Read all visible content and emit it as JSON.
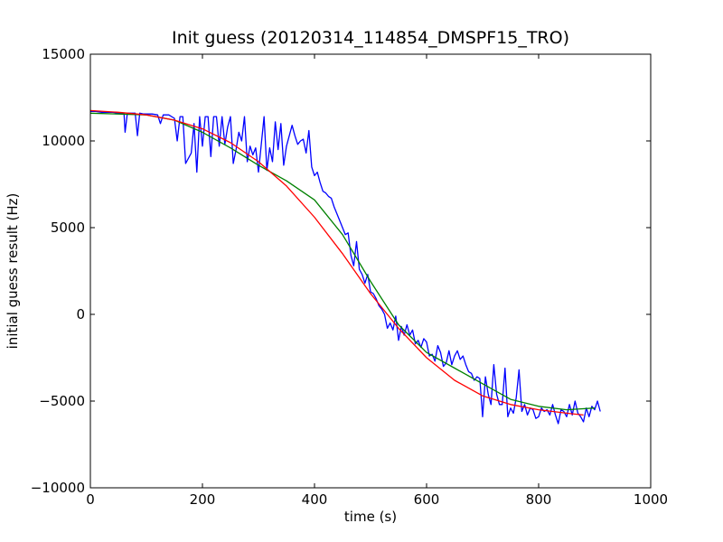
{
  "chart_data": {
    "type": "line",
    "title": "Init guess (20120314_114854_DMSPF15_TRO)",
    "xlabel": "time (s)",
    "ylabel": "initial guess result (Hz)",
    "xlim": [
      0,
      1000
    ],
    "ylim": [
      -10000,
      15000
    ],
    "x_ticks": [
      0,
      200,
      400,
      600,
      800,
      1000
    ],
    "y_ticks": [
      -10000,
      -5000,
      0,
      5000,
      10000,
      15000
    ],
    "x_tick_labels": [
      "0",
      "200",
      "400",
      "600",
      "800",
      "1000"
    ],
    "y_tick_labels": [
      "−10000",
      "−5000",
      "0",
      "5000",
      "10000",
      "15000"
    ],
    "grid": false,
    "series": [
      {
        "color": "#0000ff",
        "x": [
          0,
          10,
          20,
          30,
          40,
          50,
          60,
          62,
          66,
          70,
          80,
          84,
          88,
          95,
          100,
          110,
          120,
          125,
          130,
          140,
          150,
          155,
          160,
          165,
          170,
          180,
          185,
          190,
          195,
          200,
          205,
          210,
          215,
          220,
          225,
          230,
          235,
          240,
          245,
          250,
          255,
          260,
          265,
          270,
          275,
          280,
          285,
          290,
          295,
          300,
          305,
          310,
          315,
          320,
          325,
          330,
          335,
          340,
          345,
          350,
          355,
          360,
          365,
          370,
          375,
          380,
          385,
          390,
          395,
          400,
          405,
          410,
          415,
          420,
          425,
          430,
          435,
          440,
          445,
          450,
          455,
          460,
          465,
          470,
          475,
          480,
          485,
          490,
          495,
          500,
          505,
          510,
          515,
          520,
          525,
          530,
          535,
          540,
          545,
          550,
          555,
          560,
          565,
          570,
          575,
          580,
          585,
          590,
          595,
          600,
          605,
          610,
          615,
          620,
          625,
          630,
          635,
          640,
          645,
          650,
          655,
          660,
          665,
          670,
          675,
          680,
          685,
          690,
          695,
          700,
          705,
          710,
          715,
          720,
          725,
          730,
          735,
          740,
          745,
          750,
          755,
          760,
          765,
          770,
          775,
          780,
          785,
          790,
          795,
          800,
          805,
          810,
          815,
          820,
          825,
          830,
          835,
          840,
          845,
          850,
          855,
          860,
          865,
          870,
          875,
          880,
          885,
          890,
          895,
          900,
          905,
          910
        ],
        "y": [
          11700,
          11700,
          11650,
          11650,
          11650,
          11600,
          11600,
          10500,
          11600,
          11600,
          11600,
          10300,
          11600,
          11550,
          11550,
          11550,
          11500,
          11000,
          11500,
          11500,
          11300,
          10000,
          11400,
          11400,
          8700,
          9300,
          11000,
          8200,
          11400,
          9700,
          11400,
          11400,
          9100,
          11400,
          11400,
          9700,
          11400,
          9800,
          10800,
          11400,
          8700,
          9500,
          10500,
          10000,
          11400,
          8800,
          9700,
          9200,
          9600,
          8200,
          9800,
          11400,
          8300,
          9600,
          8800,
          11100,
          9500,
          11000,
          8600,
          9700,
          10300,
          10900,
          10300,
          9800,
          10000,
          10100,
          9300,
          10600,
          8500,
          8000,
          8200,
          7600,
          7100,
          7000,
          6800,
          6700,
          6200,
          5800,
          5400,
          5000,
          4600,
          4700,
          3400,
          2800,
          4200,
          2600,
          2300,
          1800,
          2300,
          1300,
          1200,
          900,
          500,
          300,
          0,
          -800,
          -500,
          -900,
          -100,
          -1500,
          -700,
          -1200,
          -600,
          -1200,
          -900,
          -1700,
          -1500,
          -1900,
          -1400,
          -1600,
          -2400,
          -2300,
          -2700,
          -1800,
          -2200,
          -3000,
          -2800,
          -2100,
          -2900,
          -2400,
          -2100,
          -2600,
          -2400,
          -2900,
          -3300,
          -3400,
          -3800,
          -3600,
          -3700,
          -5900,
          -3600,
          -4600,
          -5200,
          -2900,
          -4600,
          -5200,
          -5200,
          -3100,
          -5900,
          -5400,
          -5700,
          -4800,
          -3200,
          -5600,
          -5200,
          -5800,
          -5400,
          -5500,
          -6000,
          -5900,
          -5400,
          -5600,
          -5500,
          -5800,
          -5200,
          -5800,
          -6300,
          -5500,
          -5600,
          -5900,
          -5200,
          -5800,
          -5000,
          -5700,
          -5900,
          -6200,
          -5400,
          -5900,
          -5300,
          -5500,
          -5000,
          -5600
        ]
      },
      {
        "color": "#008000",
        "x": [
          0,
          50,
          100,
          150,
          200,
          250,
          300,
          350,
          400,
          450,
          500,
          550,
          600,
          650,
          700,
          750,
          800,
          850,
          900
        ],
        "y": [
          11600,
          11550,
          11500,
          11200,
          10500,
          9600,
          8600,
          7700,
          6600,
          4600,
          1900,
          -600,
          -2200,
          -3100,
          -4000,
          -4900,
          -5300,
          -5500,
          -5400
        ]
      },
      {
        "color": "#ff0000",
        "x": [
          0,
          50,
          100,
          150,
          200,
          250,
          300,
          350,
          400,
          450,
          500,
          550,
          600,
          650,
          700,
          750,
          800,
          850,
          880
        ],
        "y": [
          11750,
          11650,
          11500,
          11200,
          10700,
          9900,
          8800,
          7400,
          5600,
          3500,
          1200,
          -800,
          -2500,
          -3800,
          -4700,
          -5200,
          -5500,
          -5700,
          -5800
        ]
      }
    ]
  }
}
